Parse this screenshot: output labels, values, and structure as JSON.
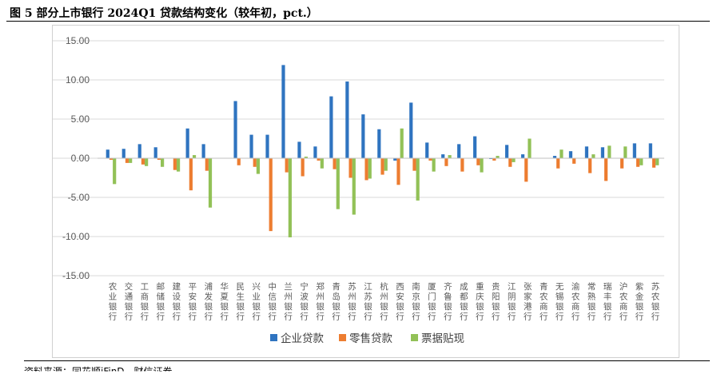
{
  "header": {
    "title": "图 5 部分上市银行 2024Q1 贷款结构变化（较年初，pct.）"
  },
  "footer": {
    "source": "资料来源：同花顺iFinD，财信证券"
  },
  "chart_data": {
    "type": "bar",
    "ylim": [
      -15,
      15
    ],
    "yticks": [
      "15.00",
      "10.00",
      "5.00",
      "0.00",
      "-5.00",
      "-10.00",
      "-15.00"
    ],
    "grid": true,
    "legend_position": "bottom",
    "categories": [
      "农业银行",
      "交通银行",
      "工商银行",
      "邮储银行",
      "建设银行",
      "平安银行",
      "浦发银行",
      "华夏银行",
      "民生银行",
      "兴业银行",
      "中信银行",
      "兰州银行",
      "宁波银行",
      "郑州银行",
      "青岛银行",
      "苏州银行",
      "江苏银行",
      "杭州银行",
      "西安银行",
      "南京银行",
      "厦门银行",
      "齐鲁银行",
      "成都银行",
      "重庆银行",
      "贵阳银行",
      "江阴银行",
      "张家港行",
      "青农商行",
      "无锡银行",
      "渝农商行",
      "常熟银行",
      "瑞丰银行",
      "沪农商行",
      "紫金银行",
      "苏农银行"
    ],
    "series": [
      {
        "name": "企业贷款",
        "color": "#2f74c0",
        "values": [
          1.1,
          1.2,
          1.8,
          1.4,
          0.0,
          3.8,
          1.8,
          0.0,
          7.3,
          3.0,
          3.0,
          11.9,
          2.1,
          1.5,
          7.9,
          9.8,
          5.6,
          3.7,
          -0.3,
          7.1,
          2.0,
          0.5,
          1.8,
          2.8,
          -0.1,
          1.7,
          0.5,
          0.0,
          0.3,
          0.9,
          1.5,
          1.4,
          0.0,
          1.9,
          1.9
        ]
      },
      {
        "name": "零售贷款",
        "color": "#ed7d31",
        "values": [
          -0.2,
          -0.6,
          -0.8,
          -0.2,
          -1.5,
          -4.1,
          -1.6,
          0.0,
          -0.9,
          -1.1,
          -9.3,
          -1.8,
          -2.3,
          -0.3,
          -1.4,
          -2.5,
          -2.8,
          -2.1,
          -3.4,
          -1.6,
          -0.3,
          -1.0,
          -1.7,
          -0.9,
          -0.3,
          -1.1,
          -3.0,
          0.0,
          -1.3,
          -0.7,
          -1.9,
          -2.9,
          -1.3,
          -1.1,
          -1.2
        ]
      },
      {
        "name": "票据贴现",
        "color": "#92c157",
        "values": [
          -3.3,
          -0.6,
          -1.0,
          -1.1,
          -1.7,
          0.4,
          -6.3,
          0.0,
          0.0,
          -2.0,
          0.0,
          -10.1,
          0.2,
          -1.3,
          -6.5,
          -7.2,
          -2.6,
          -1.6,
          3.8,
          -5.4,
          -1.7,
          0.4,
          0.0,
          -1.8,
          0.3,
          -0.5,
          2.5,
          0.0,
          1.1,
          0.0,
          0.5,
          1.6,
          1.5,
          -0.9,
          -0.9
        ]
      }
    ]
  }
}
